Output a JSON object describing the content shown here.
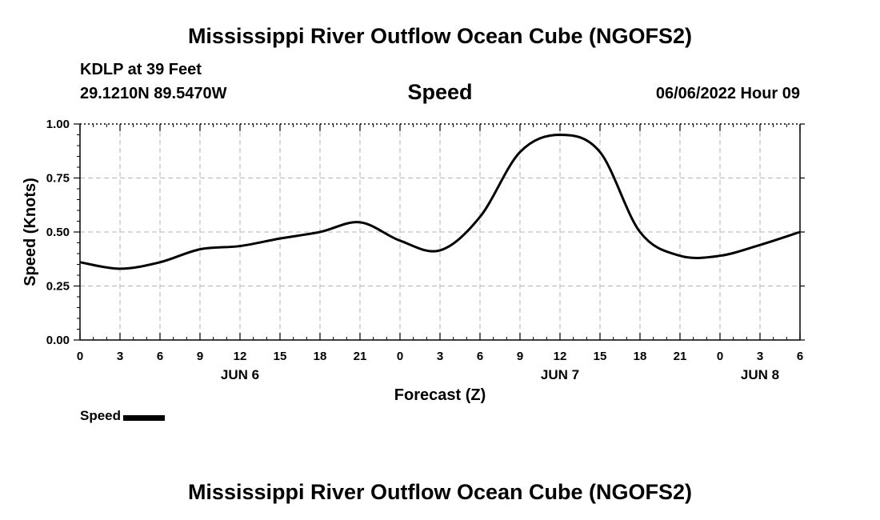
{
  "page": {
    "title": "Mississippi River Outflow Ocean Cube (NGOFS2)",
    "station": "KDLP at 39 Feet",
    "coordinates": "29.1210N  89.5470W",
    "subtitle": "Speed",
    "datetime": "06/06/2022 Hour 09",
    "bottom_title": "Mississippi River Outflow Ocean Cube (NGOFS2)"
  },
  "chart_data": {
    "type": "line",
    "title": "Speed",
    "xlabel": "Forecast (Z)",
    "ylabel": "Speed (Knots)",
    "ylim": [
      0,
      1
    ],
    "xlim": [
      0,
      54
    ],
    "grid": true,
    "legend_position": "bottom-left",
    "y_ticks": [
      {
        "value": 0,
        "label": "0.00"
      },
      {
        "value": 0.25,
        "label": "0.25"
      },
      {
        "value": 0.5,
        "label": "0.50"
      },
      {
        "value": 0.75,
        "label": "0.75"
      },
      {
        "value": 1,
        "label": "1.00"
      }
    ],
    "x_ticks": [
      {
        "value": 0,
        "label": "0"
      },
      {
        "value": 3,
        "label": "3"
      },
      {
        "value": 6,
        "label": "6"
      },
      {
        "value": 9,
        "label": "9"
      },
      {
        "value": 12,
        "label": "12"
      },
      {
        "value": 15,
        "label": "15"
      },
      {
        "value": 18,
        "label": "18"
      },
      {
        "value": 21,
        "label": "21"
      },
      {
        "value": 24,
        "label": "0"
      },
      {
        "value": 27,
        "label": "3"
      },
      {
        "value": 30,
        "label": "6"
      },
      {
        "value": 33,
        "label": "9"
      },
      {
        "value": 36,
        "label": "12"
      },
      {
        "value": 39,
        "label": "15"
      },
      {
        "value": 42,
        "label": "18"
      },
      {
        "value": 45,
        "label": "21"
      },
      {
        "value": 48,
        "label": "0"
      },
      {
        "value": 51,
        "label": "3"
      },
      {
        "value": 54,
        "label": "6"
      }
    ],
    "day_labels": [
      {
        "value": 12,
        "label": "JUN 6"
      },
      {
        "value": 36,
        "label": "JUN 7"
      },
      {
        "value": 51,
        "label": "JUN 8"
      }
    ],
    "series": [
      {
        "name": "Speed",
        "color": "#000000",
        "x": [
          0,
          3,
          6,
          9,
          12,
          15,
          18,
          21,
          24,
          27,
          30,
          33,
          36,
          39,
          42,
          45,
          48,
          51,
          54
        ],
        "values": [
          0.36,
          0.33,
          0.36,
          0.42,
          0.435,
          0.47,
          0.5,
          0.545,
          0.46,
          0.415,
          0.57,
          0.87,
          0.95,
          0.87,
          0.5,
          0.39,
          0.39,
          0.44,
          0.5
        ]
      }
    ]
  }
}
